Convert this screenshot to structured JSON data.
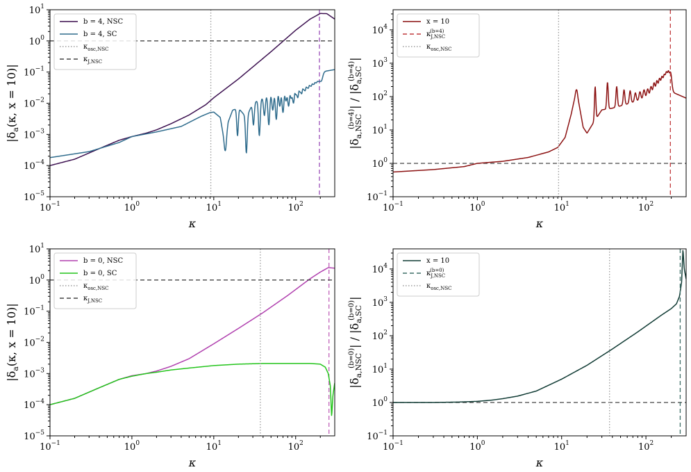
{
  "chart_data": [
    {
      "type": "line",
      "panel": "top-left",
      "xlabel": "κ",
      "ylabel": "|δa(κ, x = 10)|",
      "xscale": "log",
      "yscale": "log",
      "xlim": [
        0.1,
        300
      ],
      "ylim": [
        1e-05,
        10
      ],
      "xticks": [
        {
          "v": 0.1,
          "b": "10",
          "e": "−1"
        },
        {
          "v": 1,
          "b": "10",
          "e": "0"
        },
        {
          "v": 10,
          "b": "10",
          "e": "1"
        },
        {
          "v": 100,
          "b": "10",
          "e": "2"
        }
      ],
      "yticks": [
        {
          "v": 1e-05,
          "b": "10",
          "e": "−5"
        },
        {
          "v": 0.0001,
          "b": "10",
          "e": "−4"
        },
        {
          "v": 0.001,
          "b": "10",
          "e": "−3"
        },
        {
          "v": 0.01,
          "b": "10",
          "e": "−2"
        },
        {
          "v": 0.1,
          "b": "10",
          "e": "−1"
        },
        {
          "v": 1,
          "b": "10",
          "e": "0"
        },
        {
          "v": 10,
          "b": "10",
          "e": "1"
        }
      ],
      "legend_position": "top-left",
      "series": [
        {
          "name": "b = 4, NSC",
          "color": "#3b0f4f",
          "style": "solid",
          "x": [
            0.1,
            0.2,
            0.4,
            0.7,
            1,
            1.5,
            2,
            3,
            5,
            8,
            10,
            20,
            50,
            100,
            150,
            200,
            240,
            300
          ],
          "y": [
            0.0001,
            0.00016,
            0.00035,
            0.00065,
            0.00085,
            0.0011,
            0.0014,
            0.0022,
            0.0042,
            0.009,
            0.015,
            0.06,
            0.45,
            2.2,
            5,
            7.6,
            7.5,
            5
          ]
        },
        {
          "name": "b = 4, SC",
          "color": "#2e6b8c",
          "style": "solid",
          "x": [
            0.1,
            0.3,
            0.7,
            1,
            2,
            4,
            7,
            9,
            10,
            12,
            13.8,
            15,
            17,
            20,
            25,
            30,
            40,
            60,
            100,
            150,
            200,
            300
          ],
          "y": [
            0.00018,
            0.00028,
            0.00055,
            0.00085,
            0.0012,
            0.0018,
            0.0038,
            0.005,
            0.0052,
            0.0035,
            0.0004,
            0.0025,
            0.006,
            0.007,
            0.0035,
            0.01,
            0.015,
            0.03,
            0.06,
            0.09,
            0.1,
            0.12
          ],
          "oscillation": {
            "dips": [
              13.8,
              19.5,
              25,
              30.5,
              36,
              41.5,
              47,
              52.5,
              58,
              64,
              70,
              76,
              82,
              88,
              94,
              100,
              106,
              112,
              118,
              124,
              130,
              136,
              142,
              148,
              154,
              160,
              166,
              172,
              178,
              184,
              190,
              196,
              202
            ],
            "dip_values": [
              0.0003,
              0.0009,
              0.00025,
              0.002,
              0.0009,
              0.004,
              0.002,
              0.006,
              0.003,
              0.008,
              0.005,
              0.012,
              0.008,
              0.015,
              0.01,
              0.02,
              0.015,
              0.025,
              0.02,
              0.03,
              0.025,
              0.035,
              0.03,
              0.04,
              0.035,
              0.045,
              0.04,
              0.05,
              0.045,
              0.05,
              0.05,
              0.055,
              0.05
            ]
          }
        },
        {
          "name": "κosc,NSC",
          "color": "#9a9a9a",
          "style": "dotted",
          "vertical": true,
          "x": 9.2
        },
        {
          "name": "κJ,NSC",
          "color": "#444444",
          "style": "dashed",
          "horizontal": true,
          "y": 1
        }
      ],
      "extra_lines": [
        {
          "vertical": true,
          "x": 195,
          "color": "#9b4fb8",
          "style": "dashed"
        }
      ]
    },
    {
      "type": "line",
      "panel": "top-right",
      "xlabel": "κ",
      "ylabel": "|δa,NSC(b=4)| / |δa,SC(b=4)|",
      "xscale": "log",
      "yscale": "log",
      "xlim": [
        0.1,
        300
      ],
      "ylim": [
        0.1,
        40000
      ],
      "xticks": [
        {
          "v": 0.1,
          "b": "10",
          "e": "−1"
        },
        {
          "v": 1,
          "b": "10",
          "e": "0"
        },
        {
          "v": 10,
          "b": "10",
          "e": "1"
        },
        {
          "v": 100,
          "b": "10",
          "e": "2"
        }
      ],
      "yticks": [
        {
          "v": 0.1,
          "b": "10",
          "e": "−1"
        },
        {
          "v": 1,
          "b": "10",
          "e": "0"
        },
        {
          "v": 10,
          "b": "10",
          "e": "1"
        },
        {
          "v": 100,
          "b": "10",
          "e": "2"
        },
        {
          "v": 1000,
          "b": "10",
          "e": "3"
        },
        {
          "v": 10000,
          "b": "10",
          "e": "4"
        }
      ],
      "legend_position": "top-left",
      "series": [
        {
          "name": "x = 10",
          "color": "#8b1010",
          "style": "solid",
          "x": [
            0.1,
            0.3,
            0.7,
            1,
            2,
            4,
            7,
            9,
            11,
            13,
            15,
            18,
            20,
            25,
            30,
            40,
            60,
            100,
            150,
            200,
            300
          ],
          "y": [
            0.55,
            0.65,
            0.8,
            1,
            1.15,
            1.5,
            2.2,
            3,
            6,
            30,
            160,
            12,
            8,
            20,
            40,
            45,
            60,
            90,
            120,
            140,
            90
          ],
          "oscillation": {
            "peaks": [
              15,
              25,
              35,
              45,
              55,
              65,
              75,
              85,
              95,
              105,
              115,
              125,
              135,
              145,
              155,
              165,
              175,
              185,
              195
            ],
            "peak_values": [
              160,
              200,
              270,
              200,
              160,
              150,
              130,
              140,
              160,
              170,
              200,
              260,
              300,
              350,
              400,
              450,
              550,
              600,
              550
            ]
          }
        },
        {
          "name": "κJ,NSC(b=4)",
          "color": "#c0393b",
          "style": "dashed",
          "vertical": true,
          "x": 195
        },
        {
          "name": "κosc,NSC",
          "color": "#9a9a9a",
          "style": "dotted",
          "vertical": true,
          "x": 9.2
        }
      ],
      "extra_lines": [
        {
          "horizontal": true,
          "y": 1,
          "color": "#444444",
          "style": "dashed"
        }
      ]
    },
    {
      "type": "line",
      "panel": "bottom-left",
      "xlabel": "κ",
      "ylabel": "|δa(κ, x = 10)|",
      "xscale": "log",
      "yscale": "log",
      "xlim": [
        0.1,
        300
      ],
      "ylim": [
        1e-05,
        10
      ],
      "xticks": [
        {
          "v": 0.1,
          "b": "10",
          "e": "−1"
        },
        {
          "v": 1,
          "b": "10",
          "e": "0"
        },
        {
          "v": 10,
          "b": "10",
          "e": "1"
        },
        {
          "v": 100,
          "b": "10",
          "e": "2"
        }
      ],
      "yticks": [
        {
          "v": 1e-05,
          "b": "10",
          "e": "−5"
        },
        {
          "v": 0.0001,
          "b": "10",
          "e": "−4"
        },
        {
          "v": 0.001,
          "b": "10",
          "e": "−3"
        },
        {
          "v": 0.01,
          "b": "10",
          "e": "−2"
        },
        {
          "v": 0.1,
          "b": "10",
          "e": "−1"
        },
        {
          "v": 1,
          "b": "10",
          "e": "0"
        },
        {
          "v": 10,
          "b": "10",
          "e": "1"
        }
      ],
      "legend_position": "top-left",
      "series": [
        {
          "name": "b = 0, NSC",
          "color": "#b03fae",
          "style": "solid",
          "x": [
            0.1,
            0.2,
            0.4,
            0.7,
            1,
            1.5,
            2,
            3,
            5,
            10,
            20,
            40,
            80,
            150,
            200,
            250,
            300
          ],
          "y": [
            0.0001,
            0.00016,
            0.00035,
            0.00065,
            0.00085,
            0.001,
            0.0012,
            0.0017,
            0.003,
            0.009,
            0.028,
            0.09,
            0.32,
            1.1,
            1.8,
            2.5,
            2.4
          ]
        },
        {
          "name": "b = 0, SC",
          "color": "#22c41a",
          "style": "solid",
          "x": [
            0.1,
            0.2,
            0.4,
            0.7,
            1,
            1.5,
            2,
            3,
            5,
            10,
            20,
            40,
            80,
            150,
            200,
            230,
            250,
            265,
            275,
            285,
            300
          ],
          "y": [
            0.0001,
            0.00016,
            0.00035,
            0.00065,
            0.00082,
            0.001,
            0.0011,
            0.0013,
            0.0015,
            0.0018,
            0.002,
            0.0021,
            0.0021,
            0.0021,
            0.002,
            0.0016,
            0.001,
            0.0004,
            4e-05,
            0.0002,
            0.0005
          ]
        },
        {
          "name": "κosc,NSC",
          "color": "#9a9a9a",
          "style": "dotted",
          "vertical": true,
          "x": 37
        },
        {
          "name": "κJ,NSC",
          "color": "#444444",
          "style": "dashed",
          "horizontal": true,
          "y": 1
        }
      ],
      "extra_lines": [
        {
          "vertical": true,
          "x": 255,
          "color": "#c060b8",
          "style": "dashed"
        }
      ]
    },
    {
      "type": "line",
      "panel": "bottom-right",
      "xlabel": "κ",
      "ylabel": "|δa,NSC(b=0)| / |δa,SC(b=0)|",
      "xscale": "log",
      "yscale": "log",
      "xlim": [
        0.1,
        300
      ],
      "ylim": [
        0.1,
        40000
      ],
      "xticks": [
        {
          "v": 0.1,
          "b": "10",
          "e": "−1"
        },
        {
          "v": 1,
          "b": "10",
          "e": "0"
        },
        {
          "v": 10,
          "b": "10",
          "e": "1"
        },
        {
          "v": 100,
          "b": "10",
          "e": "2"
        }
      ],
      "yticks": [
        {
          "v": 0.1,
          "b": "10",
          "e": "−1"
        },
        {
          "v": 1,
          "b": "10",
          "e": "0"
        },
        {
          "v": 10,
          "b": "10",
          "e": "1"
        },
        {
          "v": 100,
          "b": "10",
          "e": "2"
        },
        {
          "v": 1000,
          "b": "10",
          "e": "3"
        },
        {
          "v": 10000,
          "b": "10",
          "e": "4"
        }
      ],
      "legend_position": "top-left",
      "series": [
        {
          "name": "x = 10",
          "color": "#0f3a33",
          "style": "solid",
          "x": [
            0.1,
            0.3,
            0.6,
            1,
            1.5,
            2,
            3,
            5,
            10,
            20,
            40,
            80,
            150,
            200,
            230,
            250,
            265,
            275,
            285,
            300
          ],
          "y": [
            1,
            1,
            1.03,
            1.08,
            1.18,
            1.3,
            1.55,
            2.2,
            5,
            13,
            40,
            130,
            400,
            650,
            900,
            1500,
            4000,
            40000,
            10000,
            5000
          ]
        },
        {
          "name": "κJ,NSC(b=0)",
          "color": "#3d6e67",
          "style": "dashed",
          "vertical": true,
          "x": 255
        },
        {
          "name": "κosc,NSC",
          "color": "#9a9a9a",
          "style": "dotted",
          "vertical": true,
          "x": 37
        }
      ],
      "extra_lines": [
        {
          "horizontal": true,
          "y": 1,
          "color": "#444444",
          "style": "dashed"
        }
      ]
    }
  ]
}
